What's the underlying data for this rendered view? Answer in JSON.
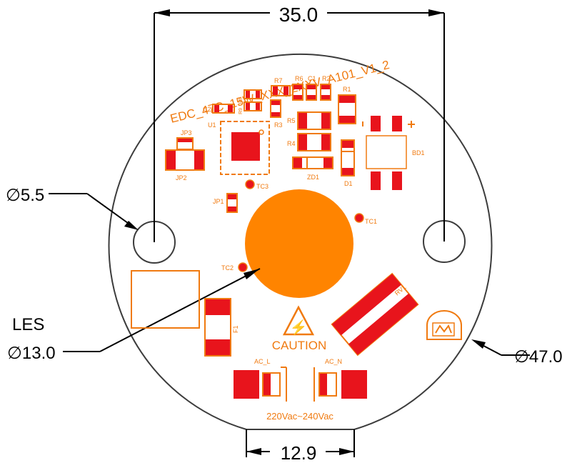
{
  "title": "EDC_47C_15W_XXX_2XXV_A101_V1_2",
  "dimensions": {
    "width_top": "35.0",
    "width_bottom": "12.9",
    "hole_dia": "∅5.5",
    "les_label": "LES",
    "les_dia": "∅13.0",
    "board_dia": "∅47.0"
  },
  "components": {
    "c2": "C2",
    "u1": "U1",
    "r3": "R3",
    "r7": "R7",
    "r6": "R6",
    "c1": "C1",
    "r2": "R2",
    "r1": "R1",
    "r5": "R5",
    "r4": "R4",
    "zd1": "ZD1",
    "d1": "D1",
    "bd1": "BD1",
    "jp3": "JP3",
    "jp2": "JP2",
    "jp1": "JP1",
    "tc3": "TC3",
    "tc1": "TC1",
    "tc2": "TC2",
    "rv1": "RV1",
    "f1": "F1",
    "ac_l": "AC_L",
    "ac_n": "AC_N",
    "r8": "R8",
    "r9": "R9"
  },
  "caution_text": "CAUTION",
  "voltage_text": "220Vac~240Vac",
  "colors": {
    "silk": "#f07a10",
    "pad": "#e8141c",
    "les": "#ff8400",
    "outline": "#3c3c3c"
  }
}
